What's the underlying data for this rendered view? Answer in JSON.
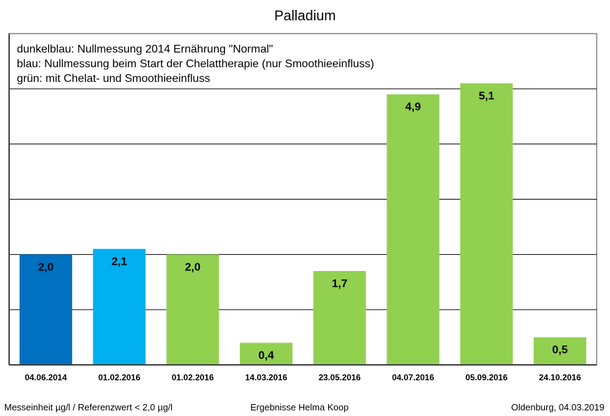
{
  "chart_data": {
    "type": "bar",
    "title": "Palladium",
    "categories": [
      "04.06.2014",
      "01.02.2016",
      "01.02.2016",
      "14.03.2016",
      "23.05.2016",
      "04.07.2016",
      "05.09.2016",
      "24.10.2016"
    ],
    "values": [
      2.0,
      2.1,
      2.0,
      0.4,
      1.7,
      4.9,
      5.1,
      0.5
    ],
    "value_labels": [
      "2,0",
      "2,1",
      "2,0",
      "0,4",
      "1,7",
      "4,9",
      "5,1",
      "0,5"
    ],
    "bar_colors": [
      "#0070C0",
      "#00B0F0",
      "#92D050",
      "#92D050",
      "#92D050",
      "#92D050",
      "#92D050",
      "#92D050"
    ],
    "ylim": [
      0,
      6
    ],
    "gridlines": [
      1,
      2,
      3,
      4,
      5
    ],
    "xlabel": "",
    "ylabel": "",
    "legend_lines": [
      "dunkelblau: Nullmessung 2014 Ernährung \"Normal\"",
      "blau: Nullmessung beim Start der Chelattherapie (nur Smoothieeinfluss)",
      "grün: mit Chelat- und Smoothieeinfluss"
    ]
  },
  "footer": {
    "left": "Messeinheit µg/l / Referenzwert < 2,0 µg/l",
    "center": "Ergebnisse Helma Koop",
    "right": "Oldenburg, 04.03.2019"
  }
}
